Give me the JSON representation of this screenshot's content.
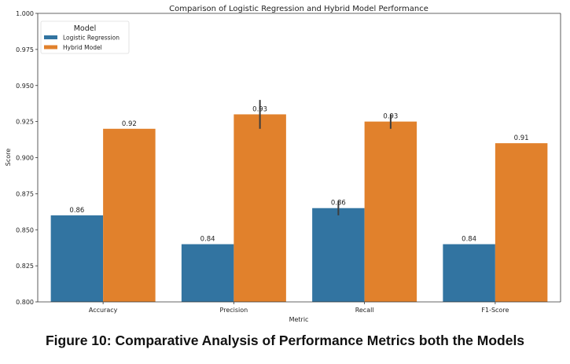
{
  "chart_data": {
    "type": "bar",
    "title": "Comparison of Logistic Regression and Hybrid Model Performance",
    "xlabel": "Metric",
    "ylabel": "Score",
    "ylim": [
      0.8,
      1.0
    ],
    "yticks": [
      "0.800",
      "0.825",
      "0.850",
      "0.875",
      "0.900",
      "0.925",
      "0.950",
      "0.975",
      "1.000"
    ],
    "ytick_values": [
      0.8,
      0.825,
      0.85,
      0.875,
      0.9,
      0.925,
      0.95,
      0.975,
      1.0
    ],
    "categories": [
      "Accuracy",
      "Precision",
      "Recall",
      "F1-Score"
    ],
    "grid": false,
    "legend": {
      "title": "Model",
      "placement": "top-left"
    },
    "series": [
      {
        "name": "Logistic Regression",
        "color": "#3274a1",
        "values": [
          0.86,
          0.84,
          0.865,
          0.84
        ],
        "labels": [
          "0.86",
          "0.84",
          "0.86",
          "0.84"
        ],
        "error": [
          null,
          null,
          [
            0.86,
            0.87
          ],
          null
        ]
      },
      {
        "name": "Hybrid Model",
        "color": "#e1812c",
        "values": [
          0.92,
          0.93,
          0.925,
          0.91
        ],
        "labels": [
          "0.92",
          "0.93",
          "0.93",
          "0.91"
        ],
        "error": [
          null,
          [
            0.92,
            0.94
          ],
          [
            0.92,
            0.93
          ],
          null
        ]
      }
    ]
  },
  "caption": "Figure 10: Comparative Analysis of Performance Metrics both the Models"
}
